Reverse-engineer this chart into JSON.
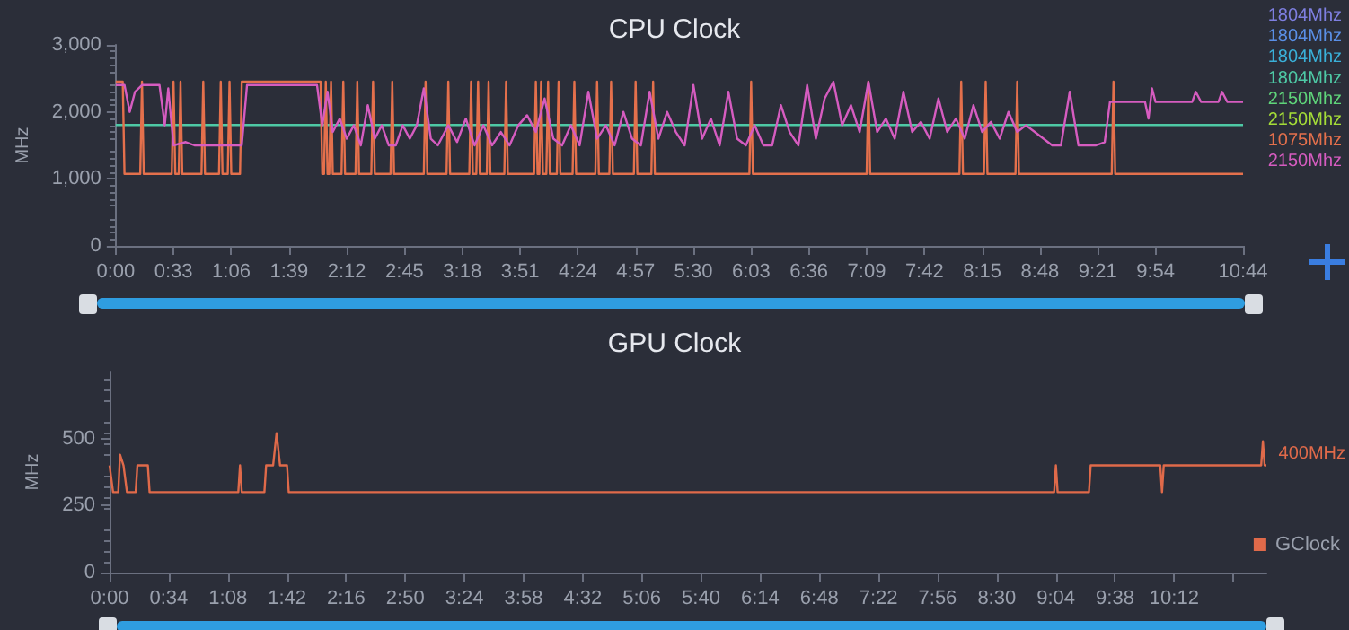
{
  "chart_data": [
    {
      "type": "line",
      "title": "CPU Clock",
      "ylabel": "MHz",
      "legend": "right",
      "marker": "none",
      "xlim": [
        0,
        644
      ],
      "ylim": [
        0,
        3000
      ],
      "xticks": [
        {
          "value": 0,
          "label": "0:00"
        },
        {
          "value": 33,
          "label": "0:33"
        },
        {
          "value": 66,
          "label": "1:06"
        },
        {
          "value": 99,
          "label": "1:39"
        },
        {
          "value": 132,
          "label": "2:12"
        },
        {
          "value": 165,
          "label": "2:45"
        },
        {
          "value": 198,
          "label": "3:18"
        },
        {
          "value": 231,
          "label": "3:51"
        },
        {
          "value": 264,
          "label": "4:24"
        },
        {
          "value": 297,
          "label": "4:57"
        },
        {
          "value": 330,
          "label": "5:30"
        },
        {
          "value": 363,
          "label": "6:03"
        },
        {
          "value": 396,
          "label": "6:36"
        },
        {
          "value": 429,
          "label": "7:09"
        },
        {
          "value": 462,
          "label": "7:42"
        },
        {
          "value": 495,
          "label": "8:15"
        },
        {
          "value": 528,
          "label": "8:48"
        },
        {
          "value": 561,
          "label": "9:21"
        },
        {
          "value": 594,
          "label": "9:54"
        },
        {
          "value": 644,
          "label": "10:44"
        }
      ],
      "yticks": [
        0,
        {
          "value": 1000,
          "label": "1,000"
        },
        {
          "value": 2000,
          "label": "2,000"
        },
        {
          "value": 3000,
          "label": "3,000"
        }
      ],
      "series": [
        {
          "name": "1804Mhz",
          "color": "#7e7fe0"
        },
        {
          "name": "1804Mhz",
          "color": "#5a8fe6"
        },
        {
          "name": "1804Mhz",
          "color": "#3ab0d8"
        },
        {
          "name": "1804Mhz",
          "color": "#4ec9a5",
          "x": [
            0,
            644
          ],
          "values": [
            1804,
            1804
          ]
        },
        {
          "name": "2150Mhz",
          "color": "#5fd47a"
        },
        {
          "name": "2150Mhz",
          "color": "#a4dc38"
        },
        {
          "name": "1075Mhz",
          "color": "#e4704c",
          "x": [
            0,
            4,
            5,
            14,
            15,
            16,
            32,
            33,
            34,
            36,
            37,
            38,
            49,
            50,
            51,
            59,
            60,
            61,
            64,
            65,
            66,
            71,
            72,
            117,
            118,
            119,
            120,
            121,
            122,
            123,
            124,
            129,
            130,
            131,
            137,
            138,
            139,
            146,
            147,
            148,
            157,
            158,
            159,
            176,
            177,
            178,
            189,
            190,
            191,
            202,
            203,
            204,
            206,
            207,
            208,
            212,
            213,
            214,
            222,
            223,
            224,
            239,
            240,
            241,
            242,
            243,
            244,
            246,
            247,
            248,
            252,
            253,
            254,
            261,
            262,
            263,
            274,
            275,
            276,
            282,
            283,
            284,
            296,
            297,
            298,
            306,
            307,
            308,
            362,
            363,
            364,
            429,
            430,
            431,
            482,
            483,
            484,
            496,
            497,
            498,
            514,
            515,
            516,
            569,
            570,
            571,
            644
          ],
          "values": [
            2450,
            2450,
            1075,
            1075,
            2450,
            1075,
            1075,
            2450,
            1075,
            1075,
            2450,
            1075,
            1075,
            2450,
            1075,
            1075,
            2450,
            1075,
            1075,
            2450,
            1075,
            1075,
            2450,
            2450,
            1075,
            1075,
            2450,
            1075,
            1075,
            2450,
            1075,
            1075,
            2450,
            1075,
            1075,
            2450,
            1075,
            1075,
            2450,
            1075,
            1075,
            2450,
            1075,
            1075,
            2450,
            1075,
            1075,
            2450,
            1075,
            1075,
            2450,
            1075,
            1075,
            2450,
            1075,
            1075,
            2450,
            1075,
            1075,
            2450,
            1075,
            1075,
            2450,
            1075,
            1075,
            2450,
            1075,
            1075,
            2450,
            1075,
            1075,
            2450,
            1075,
            1075,
            2450,
            1075,
            1075,
            2450,
            1075,
            1075,
            2450,
            1075,
            1075,
            2450,
            1075,
            1075,
            2450,
            1075,
            1075,
            2450,
            1075,
            1075,
            2450,
            1075,
            1075,
            2450,
            1075,
            1075,
            2450,
            1075,
            1075,
            2450,
            1075,
            1075,
            2450,
            1075,
            1075
          ]
        },
        {
          "name": "2150Mhz",
          "color": "#d65cc0",
          "x": [
            0,
            5,
            8,
            11,
            15,
            25,
            28,
            30,
            33,
            40,
            45,
            72,
            75,
            115,
            118,
            121,
            124,
            128,
            132,
            136,
            140,
            144,
            148,
            152,
            156,
            160,
            164,
            168,
            172,
            176,
            180,
            184,
            190,
            195,
            200,
            205,
            210,
            215,
            220,
            225,
            230,
            235,
            240,
            245,
            250,
            255,
            260,
            265,
            270,
            275,
            280,
            285,
            290,
            295,
            300,
            305,
            310,
            315,
            320,
            325,
            330,
            335,
            340,
            345,
            350,
            355,
            360,
            365,
            370,
            375,
            380,
            385,
            390,
            395,
            400,
            405,
            410,
            415,
            420,
            425,
            430,
            435,
            440,
            445,
            450,
            455,
            460,
            465,
            470,
            475,
            480,
            485,
            490,
            495,
            500,
            505,
            510,
            515,
            520,
            525,
            530,
            535,
            540,
            545,
            550,
            560,
            565,
            568,
            588,
            590,
            592,
            594,
            615,
            617,
            620,
            630,
            632,
            635,
            640,
            644
          ],
          "values": [
            2400,
            2400,
            2000,
            2300,
            2400,
            2400,
            1800,
            2350,
            1500,
            1550,
            1500,
            1500,
            2400,
            2400,
            1800,
            2300,
            1700,
            1900,
            1600,
            1800,
            1500,
            2100,
            1600,
            1800,
            1500,
            1500,
            1800,
            1600,
            1800,
            2350,
            1600,
            1500,
            1800,
            1550,
            1900,
            1500,
            1800,
            1500,
            1700,
            1500,
            1800,
            1950,
            1700,
            2200,
            1600,
            1500,
            1800,
            1500,
            2300,
            1600,
            1800,
            1500,
            2000,
            1600,
            1500,
            2300,
            1600,
            2000,
            1700,
            1500,
            2400,
            1600,
            1900,
            1500,
            2300,
            1600,
            1500,
            1800,
            1500,
            1500,
            2100,
            1700,
            1500,
            2400,
            1600,
            2200,
            2450,
            1800,
            2100,
            1700,
            2450,
            1700,
            1900,
            1600,
            2300,
            1700,
            1850,
            1600,
            2200,
            1700,
            1900,
            1600,
            2100,
            1700,
            1850,
            1600,
            2000,
            1700,
            1800,
            1700,
            1600,
            1500,
            1500,
            2300,
            1500,
            1500,
            1550,
            2150,
            2150,
            1900,
            2350,
            2150,
            2150,
            2300,
            2150,
            2150,
            2300,
            2150,
            2150,
            2150
          ]
        }
      ]
    },
    {
      "type": "line",
      "title": "GPU Clock",
      "ylabel": "MHz",
      "legend": "right",
      "marker": "none",
      "xlim": [
        0,
        665
      ],
      "ylim": [
        0,
        750
      ],
      "xticks": [
        {
          "value": 0,
          "label": "0:00"
        },
        {
          "value": 34,
          "label": "0:34"
        },
        {
          "value": 68,
          "label": "1:08"
        },
        {
          "value": 102,
          "label": "1:42"
        },
        {
          "value": 136,
          "label": "2:16"
        },
        {
          "value": 170,
          "label": "2:50"
        },
        {
          "value": 204,
          "label": "3:24"
        },
        {
          "value": 238,
          "label": "3:58"
        },
        {
          "value": 272,
          "label": "4:32"
        },
        {
          "value": 306,
          "label": "5:06"
        },
        {
          "value": 340,
          "label": "5:40"
        },
        {
          "value": 374,
          "label": "6:14"
        },
        {
          "value": 408,
          "label": "6:48"
        },
        {
          "value": 442,
          "label": "7:22"
        },
        {
          "value": 476,
          "label": "7:56"
        },
        {
          "value": 510,
          "label": "8:30"
        },
        {
          "value": 544,
          "label": "9:04"
        },
        {
          "value": 578,
          "label": "9:38"
        },
        {
          "value": 612,
          "label": "10:12"
        },
        {
          "value": 646,
          "label": null
        }
      ],
      "yticks": [
        0,
        250,
        500
      ],
      "annotations": [
        "400MHz"
      ],
      "series": [
        {
          "name": "GClock",
          "color": "#e06a4a",
          "x": [
            0,
            2,
            5,
            6,
            8,
            10,
            15,
            16,
            22,
            23,
            74,
            75,
            76,
            89,
            90,
            94,
            96,
            98,
            102,
            103,
            543,
            544,
            545,
            563,
            564,
            604,
            605,
            606,
            662,
            663,
            664,
            665
          ],
          "values": [
            400,
            300,
            300,
            440,
            400,
            300,
            300,
            400,
            400,
            300,
            300,
            400,
            300,
            300,
            400,
            400,
            520,
            400,
            400,
            300,
            300,
            400,
            300,
            300,
            400,
            400,
            300,
            400,
            400,
            490,
            400,
            400
          ]
        }
      ]
    }
  ]
}
